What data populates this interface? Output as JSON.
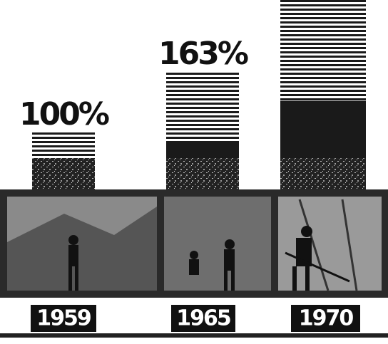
{
  "chart_data": {
    "type": "bar",
    "categories": [
      "1959",
      "1965",
      "1970"
    ],
    "values": [
      100,
      163,
      240
    ],
    "value_labels": [
      "100%",
      "163%",
      null
    ],
    "color": "#1a1a1a",
    "ylim": [
      0,
      237
    ]
  }
}
